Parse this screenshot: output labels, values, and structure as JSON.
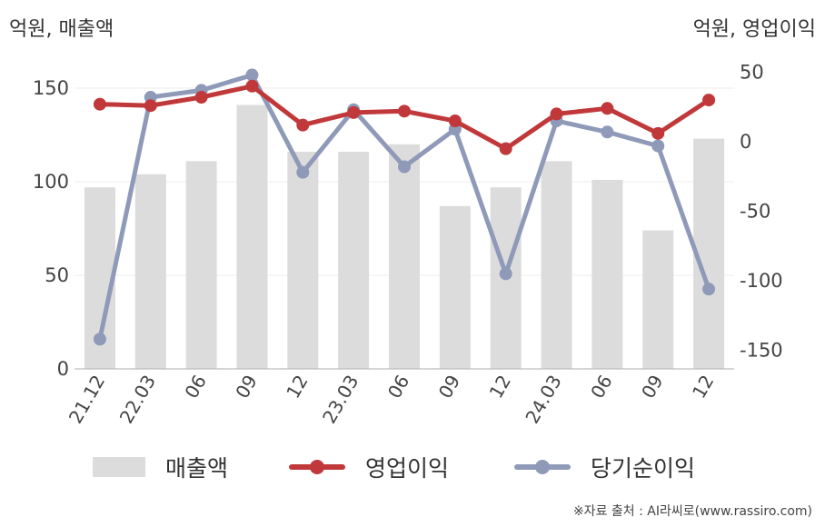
{
  "units": {
    "left": "억원, 매출액",
    "right": "억원, 영업이익"
  },
  "source": "※자료 출처 : AI라씨로(www.rassiro.com)",
  "chart_data": {
    "type": "bar+line",
    "categories": [
      "21.12",
      "22.03",
      "06",
      "09",
      "12",
      "23.03",
      "06",
      "09",
      "12",
      "24.03",
      "06",
      "09",
      "12"
    ],
    "y_left": {
      "ticks": [
        0,
        50,
        100,
        150
      ],
      "range": [
        0,
        160
      ]
    },
    "y_right": {
      "ticks": [
        -150,
        -100,
        -50,
        0,
        50
      ],
      "range": [
        -160,
        50
      ]
    },
    "grid": true,
    "legend_position": "bottom",
    "series": [
      {
        "name": "매출액",
        "type": "bar",
        "axis": "left",
        "color": "#dcdcdc",
        "values": [
          97,
          104,
          111,
          141,
          116,
          116,
          120,
          87,
          97,
          111,
          101,
          74,
          123
        ]
      },
      {
        "name": "영업이익",
        "type": "line",
        "axis": "right",
        "color": "#c0383a",
        "values": [
          27,
          26,
          32,
          40,
          12,
          21,
          22,
          15,
          -5,
          20,
          24,
          6,
          30
        ]
      },
      {
        "name": "당기순이익",
        "type": "line",
        "axis": "right",
        "color": "#8e9ab8",
        "values": [
          -142,
          32,
          37,
          48,
          -22,
          23,
          -18,
          9,
          -95,
          15,
          7,
          -3,
          -106
        ]
      }
    ]
  }
}
